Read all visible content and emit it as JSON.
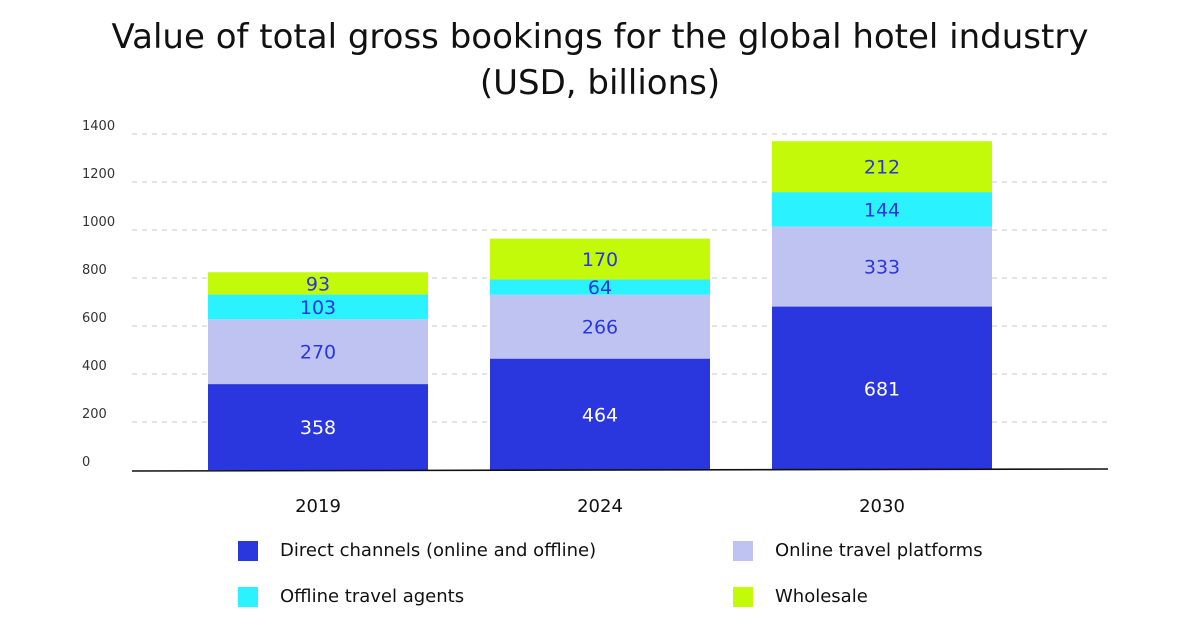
{
  "chart_data": {
    "type": "bar",
    "stacked": true,
    "title": [
      "Value of total gross bookings for the global hotel industry",
      "(USD, billions)"
    ],
    "categories": [
      "2019",
      "2024",
      "2030"
    ],
    "series": [
      {
        "name": "Direct channels (online and offline)",
        "values": [
          358,
          464,
          681
        ],
        "color": "#2a37de",
        "label_color": "#ffffff"
      },
      {
        "name": "Online travel platforms",
        "values": [
          270,
          266,
          333
        ],
        "color": "#bfc3f2",
        "label_color": "#2a37de"
      },
      {
        "name": "Offline travel agents",
        "values": [
          103,
          64,
          144
        ],
        "color": "#2af3ff",
        "label_color": "#2a37de"
      },
      {
        "name": "Wholesale",
        "values": [
          93,
          170,
          212
        ],
        "color": "#c3fa09",
        "label_color": "#2a37de"
      }
    ],
    "y_ticks": [
      "0",
      "200",
      "400",
      "600",
      "800",
      "1000",
      "1200",
      "1400"
    ],
    "ylim": [
      0,
      1400
    ],
    "grid": true,
    "legend_position": "bottom"
  }
}
